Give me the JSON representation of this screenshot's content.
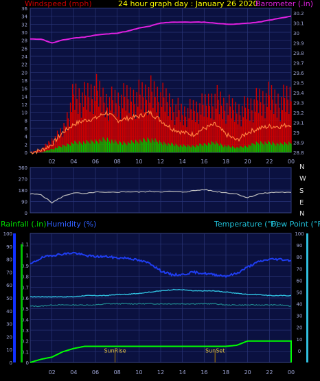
{
  "title": "24 hour graph day : January 26 2020",
  "colors": {
    "panel_bg": "#0b1140",
    "grid": "#2a3578",
    "tick_text": "#9fa7d8",
    "title": "#ffff00",
    "wind_label": "#cc0000",
    "baro_label": "#e020e0",
    "rain_label": "#00e000",
    "humidity_label": "#3060ff",
    "temp_label": "#20c0d8"
  },
  "chart_data": [
    {
      "type": "line",
      "panel": "wind-barometer",
      "xlabel": "",
      "x_ticks": [
        "02",
        "04",
        "06",
        "08",
        "10",
        "12",
        "14",
        "16",
        "18",
        "20",
        "22",
        "00"
      ],
      "left_axis": {
        "label": "Windspeed (mph)",
        "ticks": [
          "0",
          "2",
          "4",
          "6",
          "8",
          "10",
          "12",
          "14",
          "16",
          "18",
          "20",
          "22",
          "24",
          "26",
          "28",
          "30",
          "32",
          "34",
          "36"
        ],
        "ylim": [
          0,
          36
        ]
      },
      "right_axis": {
        "label": "Barometer (.in)",
        "ticks": [
          "28.8",
          "28.9",
          "29",
          "29.1",
          "29.2",
          "29.3",
          "29.4",
          "29.5",
          "29.6",
          "29.7",
          "29.8",
          "29.9",
          "30",
          "30.1",
          "30.2"
        ],
        "ylim": [
          28.8,
          30.25
        ]
      },
      "x": [
        0,
        1,
        2,
        3,
        4,
        5,
        6,
        7,
        8,
        9,
        10,
        11,
        12,
        13,
        14,
        15,
        16,
        17,
        18,
        19,
        20,
        21,
        22,
        23,
        24
      ],
      "series": [
        {
          "name": "Windspeed (mph)",
          "axis": "left",
          "color": "#cc0000",
          "kind": "gust-band",
          "values": [
            0,
            1,
            4,
            7,
            19,
            18,
            20,
            17,
            17,
            18,
            19,
            20,
            18,
            16,
            13,
            14,
            15,
            18,
            15,
            14,
            15,
            17,
            18,
            17,
            19
          ]
        },
        {
          "name": "",
          "axis": "left",
          "color": "#ff8040",
          "kind": "line",
          "values": [
            0,
            0.5,
            2,
            5,
            7,
            8,
            8.5,
            10,
            8,
            8.5,
            9,
            10,
            8,
            6,
            5,
            4.5,
            6,
            7,
            4.5,
            3,
            5,
            6,
            6.5,
            6.5,
            7
          ]
        },
        {
          "name": "",
          "axis": "left",
          "color": "#00c000",
          "kind": "band",
          "values": [
            0,
            0,
            1,
            2,
            3,
            3,
            3.5,
            4,
            3,
            3,
            3.5,
            4,
            3,
            2.5,
            2,
            2,
            2.5,
            3,
            2,
            1.5,
            2,
            3,
            3,
            2.5,
            3
          ]
        },
        {
          "name": "Barometer (.in)",
          "axis": "right",
          "color": "#e020e0",
          "kind": "line",
          "values": [
            29.94,
            29.94,
            29.9,
            29.93,
            29.95,
            29.96,
            29.98,
            29.99,
            30.0,
            30.02,
            30.05,
            30.07,
            30.1,
            30.11,
            30.11,
            30.11,
            30.11,
            30.1,
            30.09,
            30.09,
            30.1,
            30.11,
            30.13,
            30.15,
            30.17
          ]
        }
      ]
    },
    {
      "type": "line",
      "panel": "wind-direction",
      "left_axis": {
        "ticks": [
          "0",
          "90",
          "180",
          "270",
          "360"
        ],
        "ylim": [
          0,
          360
        ]
      },
      "right_labels": [
        "N",
        "W",
        "S",
        "E",
        "N"
      ],
      "x": [
        0,
        1,
        2,
        3,
        4,
        5,
        6,
        7,
        8,
        9,
        10,
        11,
        12,
        13,
        14,
        15,
        16,
        17,
        18,
        19,
        20,
        21,
        22,
        23,
        24
      ],
      "series": [
        {
          "name": "",
          "color": "#c0c0c0",
          "values": [
            150,
            145,
            80,
            130,
            160,
            150,
            165,
            160,
            165,
            168,
            165,
            170,
            168,
            170,
            165,
            175,
            185,
            170,
            160,
            150,
            120,
            150,
            160,
            165,
            160
          ]
        }
      ]
    },
    {
      "type": "line",
      "panel": "rain-humidity-temperature",
      "x_ticks": [
        "02",
        "04",
        "06",
        "08",
        "10",
        "12",
        "14",
        "16",
        "18",
        "20",
        "22",
        "00"
      ],
      "rain_axis": {
        "label": "Rainfall (.in)",
        "ticks": [
          "0",
          "0.1",
          "0.2",
          "0.3",
          "0.4",
          "0.5",
          "0.6",
          "0.7",
          "0.8",
          "0.9",
          "1",
          "1.1"
        ],
        "ylim": [
          0,
          1.2
        ]
      },
      "humidity_axis": {
        "label": "Humidity (%)",
        "ticks": [
          "0",
          "10",
          "20",
          "30",
          "40",
          "50",
          "60",
          "70",
          "80",
          "90",
          "100"
        ],
        "ylim": [
          0,
          100
        ]
      },
      "temp_axis": {
        "label": "Temperature (°F)",
        "label2": "Dew Point (°F)",
        "ticks": [
          "0",
          "10",
          "20",
          "30",
          "40",
          "50",
          "60",
          "70",
          "80",
          "90",
          "100"
        ],
        "ylim": [
          -10,
          100
        ]
      },
      "annotations": [
        {
          "text": "SunRise",
          "x": 7.8
        },
        {
          "text": "SunSet",
          "x": 17.0
        }
      ],
      "x": [
        0,
        1,
        2,
        3,
        4,
        5,
        6,
        7,
        8,
        9,
        10,
        11,
        12,
        13,
        14,
        15,
        16,
        17,
        18,
        19,
        20,
        21,
        22,
        23,
        24
      ],
      "series": [
        {
          "name": "Rainfall (.in)",
          "axis": "rain",
          "color": "#00ff00",
          "values": [
            0.0,
            0.03,
            0.05,
            0.1,
            0.13,
            0.15,
            0.15,
            0.15,
            0.15,
            0.15,
            0.15,
            0.15,
            0.15,
            0.15,
            0.15,
            0.15,
            0.15,
            0.15,
            0.15,
            0.16,
            0.2,
            0.2,
            0.2,
            0.2,
            0.2
          ]
        },
        {
          "name": "Humidity (%)",
          "axis": "humidity",
          "color": "#1f3df0",
          "values": [
            76,
            81,
            83,
            84,
            85,
            83,
            82,
            82,
            81,
            81,
            79,
            77,
            71,
            68,
            68,
            70,
            69,
            68,
            67,
            69,
            74,
            78,
            80,
            80,
            79
          ]
        },
        {
          "name": "Temperature (°F)",
          "axis": "temp",
          "color": "#30c0e0",
          "values": [
            46,
            46,
            46,
            46,
            46,
            47,
            47,
            47,
            48,
            48,
            49,
            50,
            51,
            52,
            52,
            51,
            51,
            51,
            50,
            49,
            48,
            48,
            47,
            47,
            47
          ]
        },
        {
          "name": "Dew Point (°F)",
          "axis": "temp",
          "color": "#208890",
          "values": [
            38,
            38,
            39,
            39,
            39,
            39,
            39,
            40,
            40,
            40,
            40,
            40,
            40,
            40,
            40,
            40,
            40,
            40,
            39,
            39,
            39,
            39,
            39,
            39,
            38
          ]
        }
      ]
    }
  ]
}
